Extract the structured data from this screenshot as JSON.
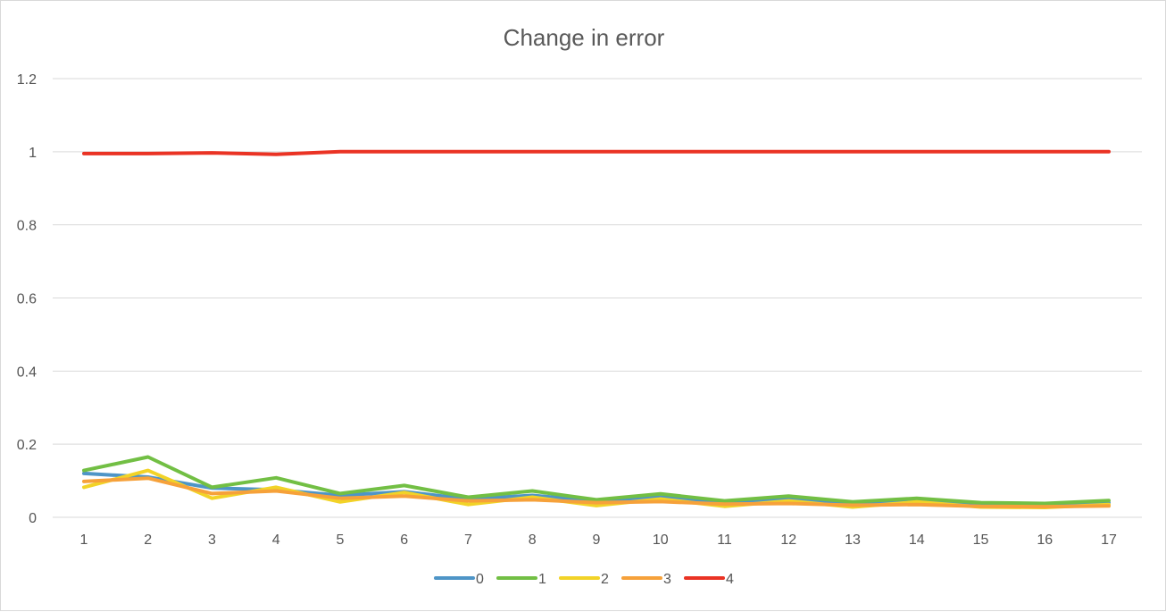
{
  "chart_data": {
    "type": "line",
    "title": "Change in error",
    "xlabel": "",
    "ylabel": "",
    "categories": [
      "1",
      "2",
      "3",
      "4",
      "5",
      "6",
      "7",
      "8",
      "9",
      "10",
      "11",
      "12",
      "13",
      "14",
      "15",
      "16",
      "17"
    ],
    "ylim": [
      0,
      1.2
    ],
    "yticks": [
      "0",
      "0.2",
      "0.4",
      "0.6",
      "0.8",
      "1",
      "1.2"
    ],
    "ytick_values": [
      0,
      0.2,
      0.4,
      0.6,
      0.8,
      1.0,
      1.2
    ],
    "grid": true,
    "legend_position": "bottom",
    "series": [
      {
        "name": "0",
        "color": "#4e95c7",
        "values": [
          0.12,
          0.11,
          0.08,
          0.075,
          0.06,
          0.07,
          0.05,
          0.06,
          0.045,
          0.055,
          0.04,
          0.05,
          0.038,
          0.045,
          0.035,
          0.033,
          0.04
        ]
      },
      {
        "name": "1",
        "color": "#72bf44",
        "values": [
          0.128,
          0.165,
          0.082,
          0.108,
          0.065,
          0.087,
          0.055,
          0.072,
          0.048,
          0.064,
          0.045,
          0.058,
          0.042,
          0.052,
          0.04,
          0.038,
          0.046
        ]
      },
      {
        "name": "2",
        "color": "#f2d327",
        "values": [
          0.082,
          0.128,
          0.052,
          0.082,
          0.042,
          0.068,
          0.035,
          0.055,
          0.032,
          0.05,
          0.03,
          0.045,
          0.028,
          0.042,
          0.028,
          0.027,
          0.035
        ]
      },
      {
        "name": "3",
        "color": "#f6a13a",
        "values": [
          0.098,
          0.107,
          0.065,
          0.072,
          0.052,
          0.058,
          0.045,
          0.048,
          0.04,
          0.043,
          0.036,
          0.038,
          0.033,
          0.035,
          0.03,
          0.029,
          0.031
        ]
      },
      {
        "name": "4",
        "color": "#ea3324",
        "values": [
          0.995,
          0.995,
          0.997,
          0.993,
          1.0,
          1.0,
          1.0,
          1.0,
          1.0,
          1.0,
          1.0,
          1.0,
          1.0,
          1.0,
          1.0,
          1.0,
          1.0
        ]
      }
    ]
  }
}
